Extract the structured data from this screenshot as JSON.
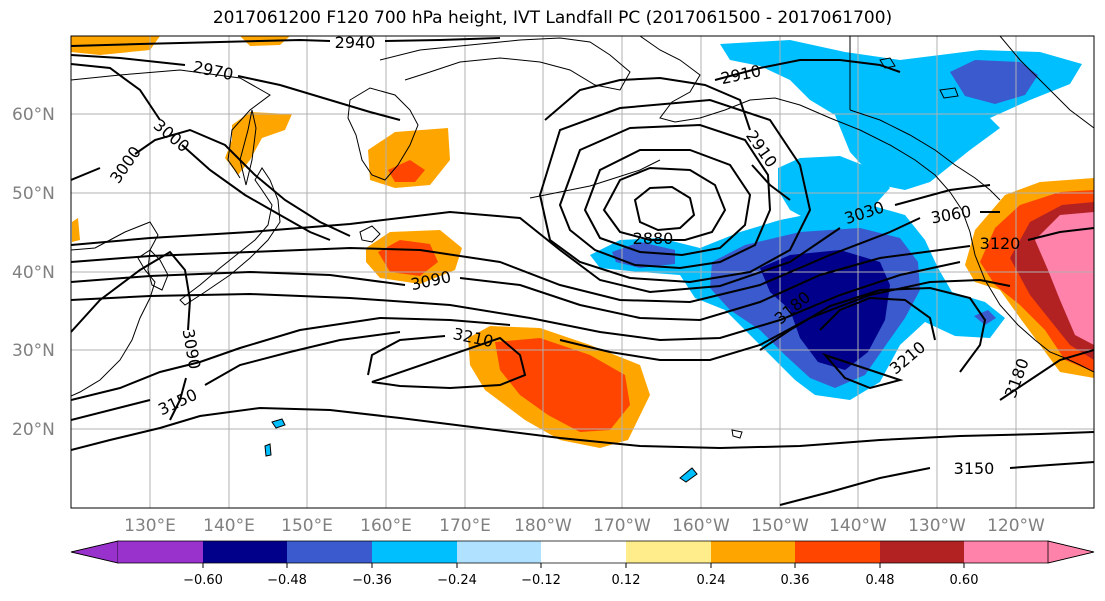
{
  "title": "2017061200 F120 700 hPa height, IVT Landfall PC (2017061500 - 2017061700)",
  "lat_labels": [
    "60°N",
    "50°N",
    "40°N",
    "30°N",
    "20°N"
  ],
  "lon_labels": [
    "130°E",
    "140°E",
    "150°E",
    "160°E",
    "170°E",
    "180°W",
    "170°W",
    "160°W",
    "150°W",
    "140°W",
    "130°W",
    "120°W"
  ],
  "contour_labels": [
    "2940",
    "2970",
    "3000",
    "3000",
    "2910",
    "2910",
    "2880",
    "3030",
    "3060",
    "3120",
    "3090",
    "3090",
    "3210",
    "3150",
    "3180",
    "3210",
    "3180",
    "3150"
  ],
  "colorbar": {
    "colors": [
      "#9932cc",
      "#00008b",
      "#3a5acd",
      "#00bfff",
      "#b0e2ff",
      "#ffffff",
      "#ffec8b",
      "#ffa500",
      "#ff4500",
      "#b22222",
      "#ff82ab"
    ],
    "ticks": [
      "−0.60",
      "−0.48",
      "−0.36",
      "−0.24",
      "−0.12",
      "0.12",
      "0.24",
      "0.36",
      "0.48",
      "0.60"
    ]
  }
}
